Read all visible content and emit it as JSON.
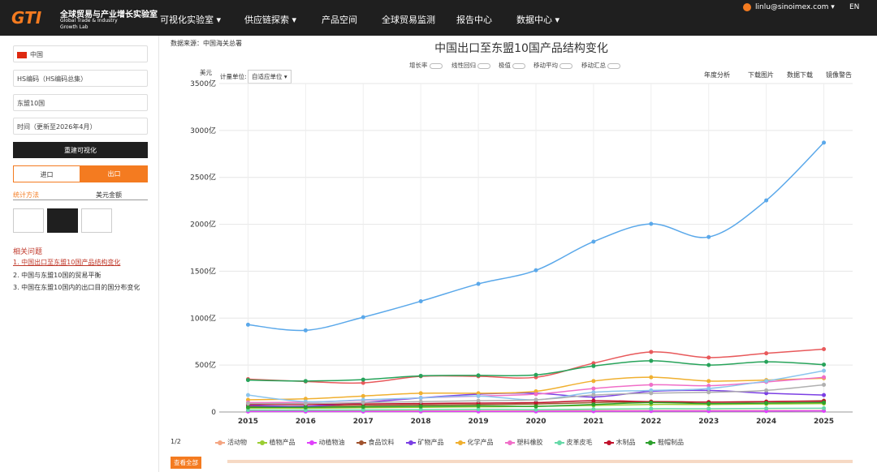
{
  "header": {
    "logo": "GTI",
    "title_cn": "全球贸易与产业增长实验室",
    "title_en_1": "Global Trade & Industry",
    "title_en_2": "Growth Lab",
    "nav": [
      "可视化实验室 ▾",
      "供应链探索 ▾",
      "产品空间",
      "全球贸易监测",
      "报告中心",
      "数据中心 ▾"
    ],
    "user": "linlu@sinoimex.com ▾",
    "lang": "EN"
  },
  "sidebar": {
    "reporter": "中国",
    "product": "HS编码（HS编码总集）",
    "partner": "东盟10国",
    "time": "时间（更新至2026年4月）",
    "rebuild": "重建可视化",
    "import": "进口",
    "export": "出口",
    "method_label": "统计方法",
    "method": "美元金额",
    "related_title": "相关问题",
    "related": [
      "1. 中国出口至东盟10国产品结构变化",
      "2. 中国与东盟10国的贸易平衡",
      "3. 中国在东盟10国内的出口目的国分布变化"
    ]
  },
  "toolbar": {
    "source": "数据来源：中国海关总署",
    "options": [
      "增长率",
      "线性回归",
      "极值",
      "移动平均",
      "移动汇总"
    ],
    "unit_label": "计量单位:",
    "unit": "自适应单位 ▾",
    "tools": [
      "年度分析",
      "下载图片",
      "数据下载",
      "镜像警告"
    ],
    "legend_page": "1/2",
    "view_all": "查看全部"
  },
  "chart_data": {
    "type": "line",
    "title": "中国出口至东盟10国产品结构变化",
    "y_unit": "美元",
    "categories": [
      "2015",
      "2016",
      "2017",
      "2018",
      "2019",
      "2020",
      "2021",
      "2022",
      "2023",
      "2024",
      "2025"
    ],
    "ylim": [
      0,
      3500
    ],
    "yticks": [
      0,
      {
        "value": 500,
        "label": "500亿"
      },
      {
        "value": 1000,
        "label": "1000亿"
      },
      {
        "value": 1500,
        "label": "1500亿"
      },
      {
        "value": 2000,
        "label": "2000亿"
      },
      {
        "value": 2500,
        "label": "2500亿"
      },
      {
        "value": 3000,
        "label": "3000亿"
      },
      {
        "value": 3500,
        "label": "3500亿"
      }
    ],
    "grid": true,
    "series": [
      {
        "name": "活动物",
        "color": "#f4a582",
        "values": [
          10,
          10,
          12,
          12,
          12,
          12,
          15,
          15,
          15,
          15,
          15
        ]
      },
      {
        "name": "植物产品",
        "color": "#9acd32",
        "values": [
          40,
          40,
          45,
          50,
          55,
          60,
          70,
          80,
          80,
          85,
          90
        ]
      },
      {
        "name": "动植物油",
        "color": "#e040fb",
        "values": [
          5,
          5,
          5,
          6,
          6,
          6,
          8,
          10,
          10,
          10,
          12
        ]
      },
      {
        "name": "食品饮料",
        "color": "#a0522d",
        "values": [
          60,
          60,
          70,
          75,
          80,
          85,
          100,
          110,
          105,
          110,
          120
        ]
      },
      {
        "name": "矿物产品",
        "color": "#7b3fe4",
        "values": [
          70,
          60,
          100,
          150,
          190,
          200,
          160,
          220,
          230,
          200,
          180
        ]
      },
      {
        "name": "化学产品",
        "color": "#f0b030",
        "values": [
          130,
          140,
          170,
          200,
          200,
          220,
          330,
          370,
          330,
          340,
          360
        ]
      },
      {
        "name": "塑料橡胶",
        "color": "#f06ec8",
        "values": [
          100,
          105,
          125,
          150,
          170,
          190,
          250,
          290,
          280,
          320,
          370
        ]
      },
      {
        "name": "皮革皮毛",
        "color": "#66d9a8",
        "values": [
          20,
          20,
          22,
          25,
          28,
          25,
          30,
          35,
          35,
          38,
          40
        ]
      },
      {
        "name": "木制品",
        "color": "#c0102a",
        "values": [
          80,
          80,
          85,
          90,
          95,
          100,
          120,
          110,
          105,
          110,
          115
        ]
      },
      {
        "name": "鞋帽制品",
        "color": "#2ca02c",
        "values": [
          50,
          50,
          55,
          60,
          65,
          60,
          80,
          100,
          90,
          95,
          100
        ]
      },
      {
        "color": "#5aa8ea",
        "values": [
          930,
          870,
          1010,
          1180,
          1365,
          1510,
          1815,
          2005,
          1865,
          2255,
          2870
        ]
      },
      {
        "color": "#e8595b",
        "values": [
          350,
          325,
          310,
          380,
          380,
          370,
          520,
          640,
          580,
          625,
          670
        ]
      },
      {
        "color": "#27a35a",
        "values": [
          340,
          330,
          345,
          385,
          390,
          395,
          490,
          545,
          500,
          535,
          505
        ]
      },
      {
        "color": "#8cc5ee",
        "values": [
          180,
          110,
          130,
          150,
          170,
          130,
          210,
          230,
          250,
          330,
          440
        ]
      },
      {
        "color": "#b0b0b0",
        "values": [
          90,
          90,
          100,
          110,
          120,
          130,
          180,
          200,
          210,
          230,
          290
        ]
      }
    ]
  }
}
